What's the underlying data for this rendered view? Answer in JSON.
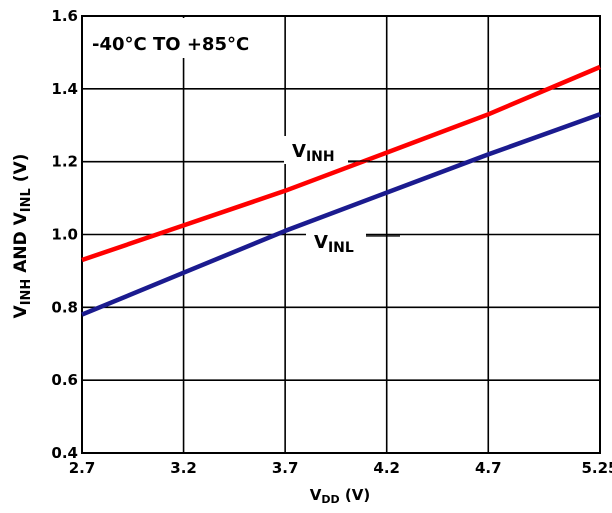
{
  "chart_data": {
    "type": "line",
    "annotation": "-40°C TO +85°C",
    "xlabel": {
      "main": "V",
      "sub": "DD",
      "unit": " (V)"
    },
    "ylabel": {
      "p1": "V",
      "s1": "INH",
      "p2": " AND V",
      "s2": "INL",
      "p3": " (V)"
    },
    "xlim": [
      2.7,
      5.25
    ],
    "ylim": [
      0.4,
      1.6
    ],
    "x_ticks": [
      2.7,
      3.2,
      3.7,
      4.2,
      4.7,
      5.25
    ],
    "x_tick_labels": [
      "2.7",
      "3.2",
      "3.7",
      "4.2",
      "4.7",
      "5.25"
    ],
    "y_ticks": [
      0.4,
      0.6,
      0.8,
      1.0,
      1.2,
      1.4,
      1.6
    ],
    "y_tick_labels": [
      "0.4",
      "0.6",
      "0.8",
      "1.0",
      "1.2",
      "1.4",
      "1.6"
    ],
    "grid": true,
    "series": [
      {
        "name": "VINH",
        "label_main": "V",
        "label_sub": "INH",
        "color": "#ff0000",
        "x": [
          2.7,
          3.2,
          3.7,
          4.2,
          4.7,
          5.25
        ],
        "y": [
          0.93,
          1.025,
          1.12,
          1.225,
          1.33,
          1.46
        ]
      },
      {
        "name": "VINL",
        "label_main": "V",
        "label_sub": "INL",
        "color": "#1b1b8f",
        "x": [
          2.7,
          3.2,
          3.7,
          4.2,
          4.7,
          5.25
        ],
        "y": [
          0.78,
          0.895,
          1.01,
          1.115,
          1.22,
          1.33
        ]
      }
    ]
  }
}
